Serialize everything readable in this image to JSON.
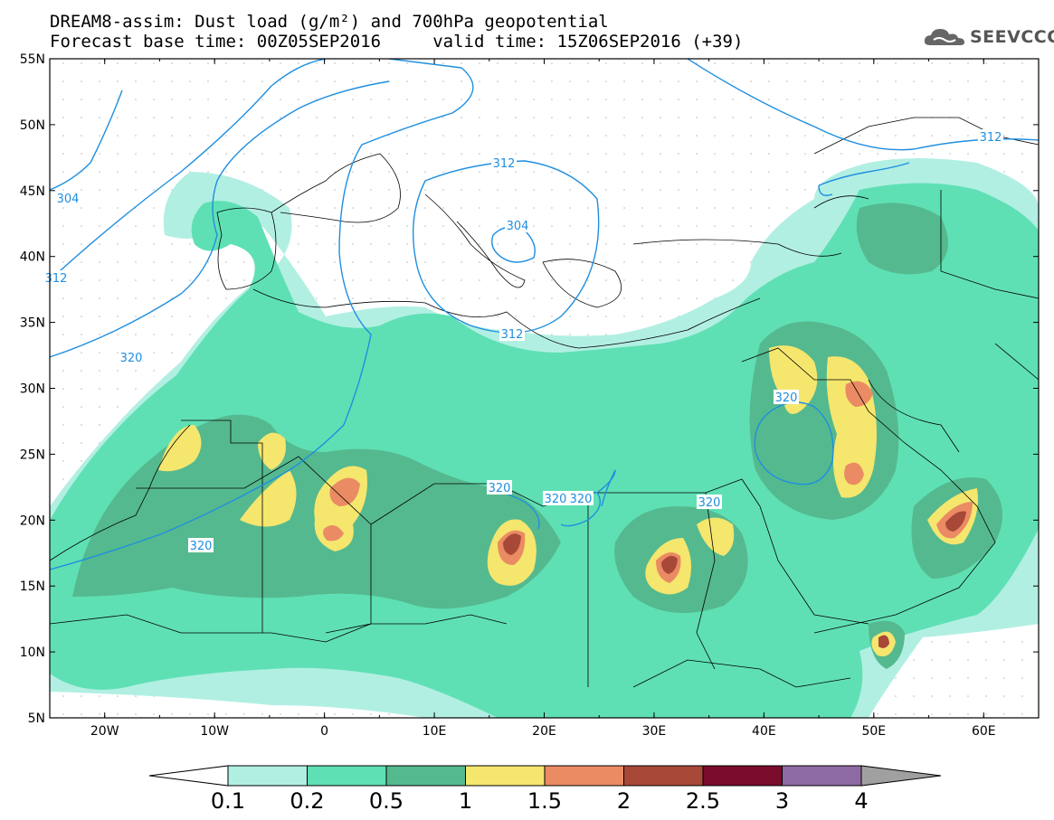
{
  "header": {
    "title_line1": "DREAM8-assim: Dust load (g/m²) and 700hPa geopotential",
    "title_line2": "Forecast base time: 00Z05SEP2016     valid time: 15Z06SEP2016 (+39)"
  },
  "logo": {
    "text": "SEEVCCC",
    "icon": "cloud-icon"
  },
  "map": {
    "lon_range": [
      -25,
      65
    ],
    "lat_range": [
      5,
      55
    ],
    "lon_labels": [
      "20W",
      "10W",
      "0",
      "10E",
      "20E",
      "30E",
      "40E",
      "50E",
      "60E"
    ],
    "lat_labels": [
      "5N",
      "10N",
      "15N",
      "20N",
      "25N",
      "30N",
      "35N",
      "40N",
      "45N",
      "50N",
      "55N"
    ],
    "contour_labels": [
      "304",
      "312",
      "312",
      "304",
      "312",
      "312",
      "320",
      "320",
      "320",
      "320",
      "320",
      "320",
      "320"
    ],
    "contour_color": "#1f8fe0"
  },
  "colorbar": {
    "ticks": [
      "0.1",
      "0.2",
      "0.5",
      "1",
      "1.5",
      "2",
      "2.5",
      "3",
      "4"
    ],
    "colors": [
      "#ffffff",
      "#b2efe3",
      "#5fe0b4",
      "#55b98f",
      "#f5e66e",
      "#ea8b63",
      "#a84838",
      "#7a0c2c",
      "#8e6aa4",
      "#a0a0a0"
    ]
  }
}
